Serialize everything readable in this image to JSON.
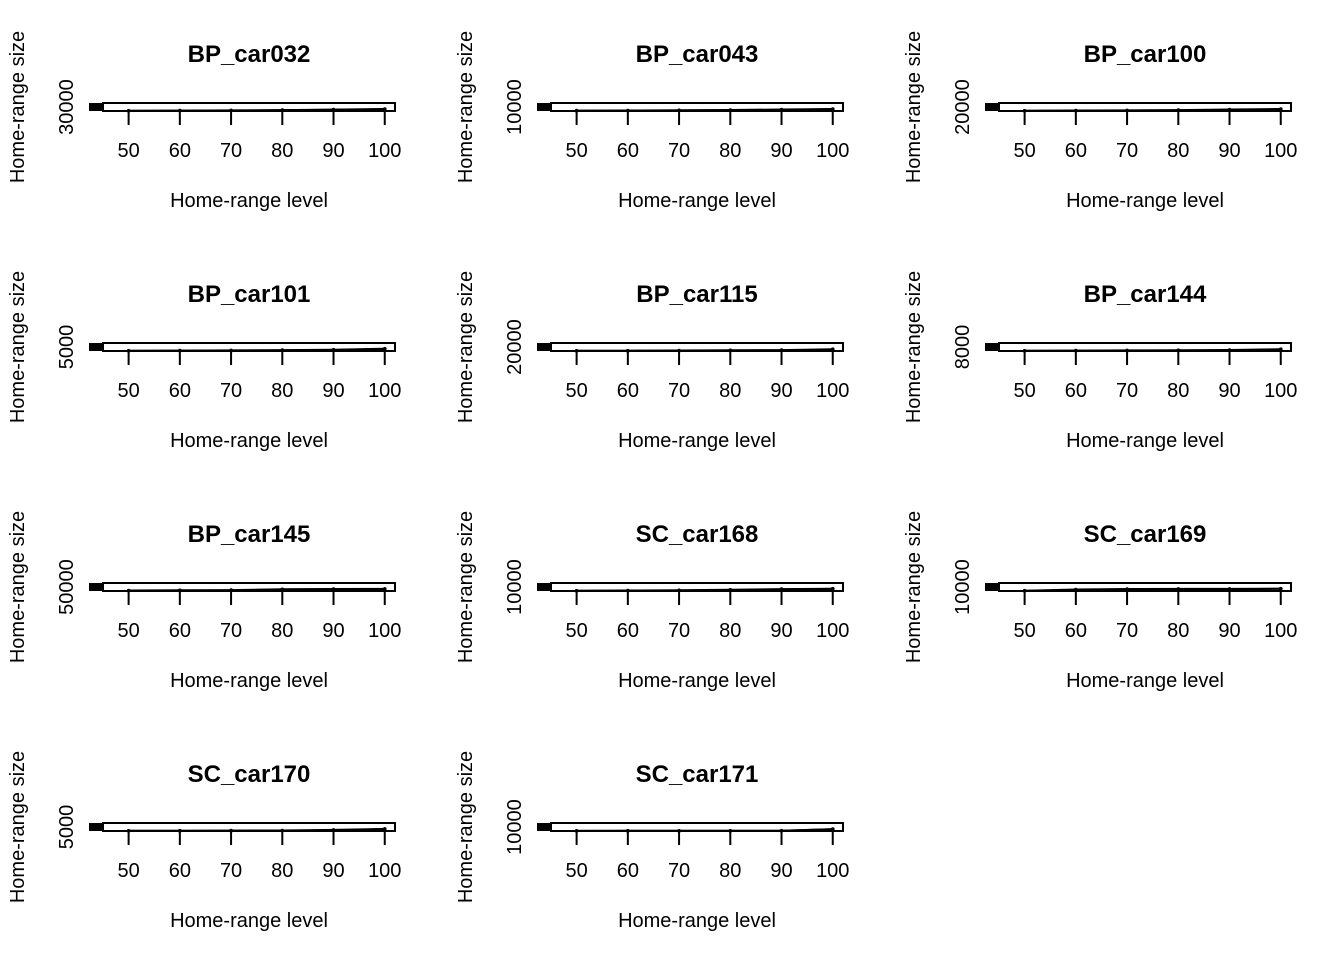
{
  "chart_data": [
    {
      "type": "line",
      "title": "BP_car032",
      "xlabel": "Home-range level",
      "ylabel": "Home-range size",
      "x": [
        50,
        60,
        70,
        80,
        90,
        100
      ],
      "xticks": [
        50,
        60,
        70,
        80,
        90,
        100
      ],
      "xlim": [
        45,
        102
      ],
      "yticks": [
        30000
      ],
      "ylim": [
        0,
        36000
      ],
      "series": [
        {
          "values": [
            1500,
            2000,
            2800,
            4200,
            6500,
            9000
          ]
        },
        {
          "values": [
            600,
            1200,
            2000,
            3300,
            5200,
            7500
          ]
        }
      ]
    },
    {
      "type": "line",
      "title": "BP_car043",
      "xlabel": "Home-range level",
      "ylabel": "Home-range size",
      "x": [
        50,
        60,
        70,
        80,
        90,
        100
      ],
      "xticks": [
        50,
        60,
        70,
        80,
        90,
        100
      ],
      "xlim": [
        45,
        102
      ],
      "yticks": [
        10000
      ],
      "ylim": [
        0,
        12000
      ],
      "series": [
        {
          "values": [
            600,
            800,
            1100,
            1500,
            2200,
            3000
          ]
        },
        {
          "values": [
            200,
            400,
            700,
            1000,
            1600,
            2500
          ]
        }
      ]
    },
    {
      "type": "line",
      "title": "BP_car100",
      "xlabel": "Home-range level",
      "ylabel": "Home-range size",
      "x": [
        50,
        60,
        70,
        80,
        90,
        100
      ],
      "xticks": [
        50,
        60,
        70,
        80,
        90,
        100
      ],
      "xlim": [
        45,
        102
      ],
      "yticks": [
        20000
      ],
      "ylim": [
        0,
        24000
      ],
      "series": [
        {
          "values": [
            1000,
            1400,
            1900,
            2700,
            4400,
            6000
          ]
        },
        {
          "values": [
            400,
            700,
            1100,
            1700,
            3000,
            5000
          ]
        }
      ]
    },
    {
      "type": "line",
      "title": "BP_car101",
      "xlabel": "Home-range level",
      "ylabel": "Home-range size",
      "x": [
        50,
        60,
        70,
        80,
        90,
        100
      ],
      "xticks": [
        50,
        60,
        70,
        80,
        90,
        100
      ],
      "xlim": [
        45,
        102
      ],
      "yticks": [
        5000
      ],
      "ylim": [
        0,
        6000
      ],
      "series": [
        {
          "values": [
            200,
            300,
            450,
            650,
            1000,
            1700
          ]
        },
        {
          "values": [
            80,
            150,
            250,
            400,
            700,
            1500
          ]
        }
      ]
    },
    {
      "type": "line",
      "title": "BP_car115",
      "xlabel": "Home-range level",
      "ylabel": "Home-range size",
      "x": [
        50,
        60,
        70,
        80,
        90,
        100
      ],
      "xticks": [
        50,
        60,
        70,
        80,
        90,
        100
      ],
      "xlim": [
        45,
        102
      ],
      "yticks": [
        20000
      ],
      "ylim": [
        0,
        24000
      ],
      "series": [
        {
          "values": [
            600,
            900,
            1500,
            2000,
            2600,
            5500
          ]
        },
        {
          "values": [
            200,
            400,
            700,
            1000,
            1500,
            4000
          ]
        }
      ]
    },
    {
      "type": "line",
      "title": "BP_car144",
      "xlabel": "Home-range level",
      "ylabel": "Home-range size",
      "x": [
        50,
        60,
        70,
        80,
        90,
        100
      ],
      "xticks": [
        50,
        60,
        70,
        80,
        90,
        100
      ],
      "xlim": [
        45,
        102
      ],
      "yticks": [
        8000
      ],
      "ylim": [
        0,
        10000
      ],
      "series": [
        {
          "values": [
            300,
            500,
            700,
            900,
            1200,
            2300
          ]
        },
        {
          "values": [
            100,
            200,
            350,
            500,
            800,
            2000
          ]
        }
      ]
    },
    {
      "type": "line",
      "title": "BP_car145",
      "xlabel": "Home-range level",
      "ylabel": "Home-range size",
      "x": [
        50,
        60,
        70,
        80,
        90,
        100
      ],
      "xticks": [
        50,
        60,
        70,
        80,
        90,
        100
      ],
      "xlim": [
        45,
        102
      ],
      "yticks": [
        50000
      ],
      "ylim": [
        0,
        60000
      ],
      "series": [
        {
          "values": [
            3500,
            5000,
            6500,
            13000,
            15000,
            16000
          ]
        },
        {
          "values": [
            1500,
            2500,
            4000,
            11000,
            13500,
            15000
          ]
        }
      ]
    },
    {
      "type": "line",
      "title": "SC_car168",
      "xlabel": "Home-range level",
      "ylabel": "Home-range size",
      "x": [
        50,
        60,
        70,
        80,
        90,
        100
      ],
      "xticks": [
        50,
        60,
        70,
        80,
        90,
        100
      ],
      "xlim": [
        45,
        102
      ],
      "yticks": [
        10000
      ],
      "ylim": [
        0,
        12000
      ],
      "series": [
        {
          "values": [
            500,
            700,
            1100,
            1800,
            2800,
            3400
          ]
        },
        {
          "values": [
            200,
            400,
            700,
            1300,
            2300,
            3200
          ]
        }
      ]
    },
    {
      "type": "line",
      "title": "SC_car169",
      "xlabel": "Home-range level",
      "ylabel": "Home-range size",
      "x": [
        50,
        60,
        70,
        80,
        90,
        100
      ],
      "xticks": [
        50,
        60,
        70,
        80,
        90,
        100
      ],
      "xlim": [
        45,
        102
      ],
      "yticks": [
        10000
      ],
      "ylim": [
        0,
        12000
      ],
      "series": [
        {
          "values": [
            500,
            2300,
            3000,
            3100,
            3200,
            3400
          ]
        },
        {
          "values": [
            100,
            1200,
            1800,
            2200,
            2600,
            3300
          ]
        }
      ]
    },
    {
      "type": "line",
      "title": "SC_car170",
      "xlabel": "Home-range level",
      "ylabel": "Home-range size",
      "x": [
        50,
        60,
        70,
        80,
        90,
        100
      ],
      "xticks": [
        50,
        60,
        70,
        80,
        90,
        100
      ],
      "xlim": [
        45,
        102
      ],
      "yticks": [
        5000
      ],
      "ylim": [
        0,
        6000
      ],
      "series": [
        {
          "values": [
            150,
            200,
            300,
            400,
            800,
            1600
          ]
        },
        {
          "values": [
            50,
            100,
            150,
            250,
            500,
            1500
          ]
        }
      ]
    },
    {
      "type": "line",
      "title": "SC_car171",
      "xlabel": "Home-range level",
      "ylabel": "Home-range size",
      "x": [
        50,
        60,
        70,
        80,
        90,
        100
      ],
      "xticks": [
        50,
        60,
        70,
        80,
        90,
        100
      ],
      "xlim": [
        45,
        102
      ],
      "yticks": [
        10000
      ],
      "ylim": [
        0,
        12000
      ],
      "series": [
        {
          "values": [
            200,
            250,
            300,
            350,
            500,
            2800
          ]
        },
        {
          "values": [
            80,
            100,
            150,
            200,
            300,
            2600
          ]
        }
      ]
    }
  ]
}
